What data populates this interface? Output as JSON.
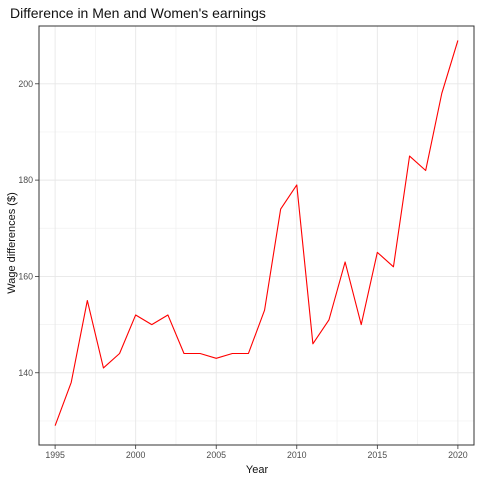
{
  "chart_data": {
    "type": "line",
    "title": "Difference in Men and Women's earnings",
    "xlabel": "Year",
    "ylabel": "Wage differences ($)",
    "xlim": [
      1994,
      2021
    ],
    "ylim": [
      125,
      212
    ],
    "x_ticks": [
      1995,
      2000,
      2005,
      2010,
      2015,
      2020
    ],
    "y_ticks": [
      140,
      160,
      180,
      200
    ],
    "grid": true,
    "legend": "none",
    "series": [
      {
        "color": "#ff0000",
        "x": [
          1995,
          1996,
          1997,
          1998,
          1999,
          2000,
          2001,
          2002,
          2003,
          2004,
          2005,
          2006,
          2007,
          2008,
          2009,
          2010,
          2011,
          2012,
          2013,
          2014,
          2015,
          2016,
          2017,
          2018,
          2019,
          2020
        ],
        "values": [
          129,
          138,
          155,
          141,
          144,
          152,
          150,
          152,
          144,
          144,
          143,
          144,
          144,
          153,
          174,
          179,
          146,
          151,
          163,
          150,
          165,
          162,
          185,
          182,
          198,
          209
        ]
      }
    ]
  }
}
